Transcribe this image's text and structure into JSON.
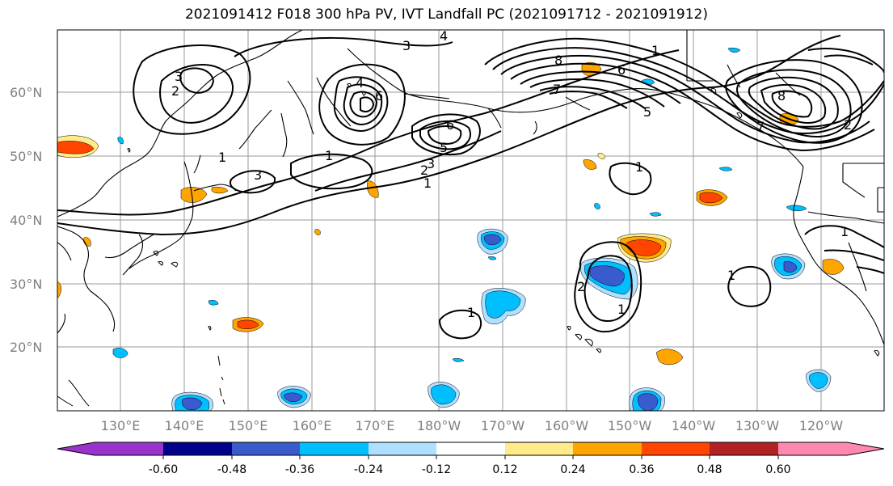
{
  "title": "2021091412 F018 300 hPa PV, IVT Landfall PC (2021091712 - 2021091912)",
  "lat_labels": [
    "60°N",
    "50°N",
    "40°N",
    "30°N",
    "20°N"
  ],
  "lon_labels": [
    "130°E",
    "140°E",
    "150°E",
    "160°E",
    "170°E",
    "180°W",
    "170°W",
    "160°W",
    "150°W",
    "140°W",
    "130°W",
    "120°W"
  ],
  "colorbar": {
    "ticks": [
      "-0.60",
      "-0.48",
      "-0.36",
      "-0.24",
      "-0.12",
      "0.12",
      "0.24",
      "0.36",
      "0.48",
      "0.60"
    ],
    "colors": [
      "#9933cc",
      "#00008b",
      "#3a5bcd",
      "#00bfff",
      "#b0e0ff",
      "#ffffff",
      "#ffeb8a",
      "#ffa500",
      "#ff4500",
      "#b22222",
      "#ff88b0"
    ]
  },
  "contour_labels": [
    "1",
    "2",
    "3",
    "4",
    "5",
    "6",
    "7",
    "8"
  ]
}
